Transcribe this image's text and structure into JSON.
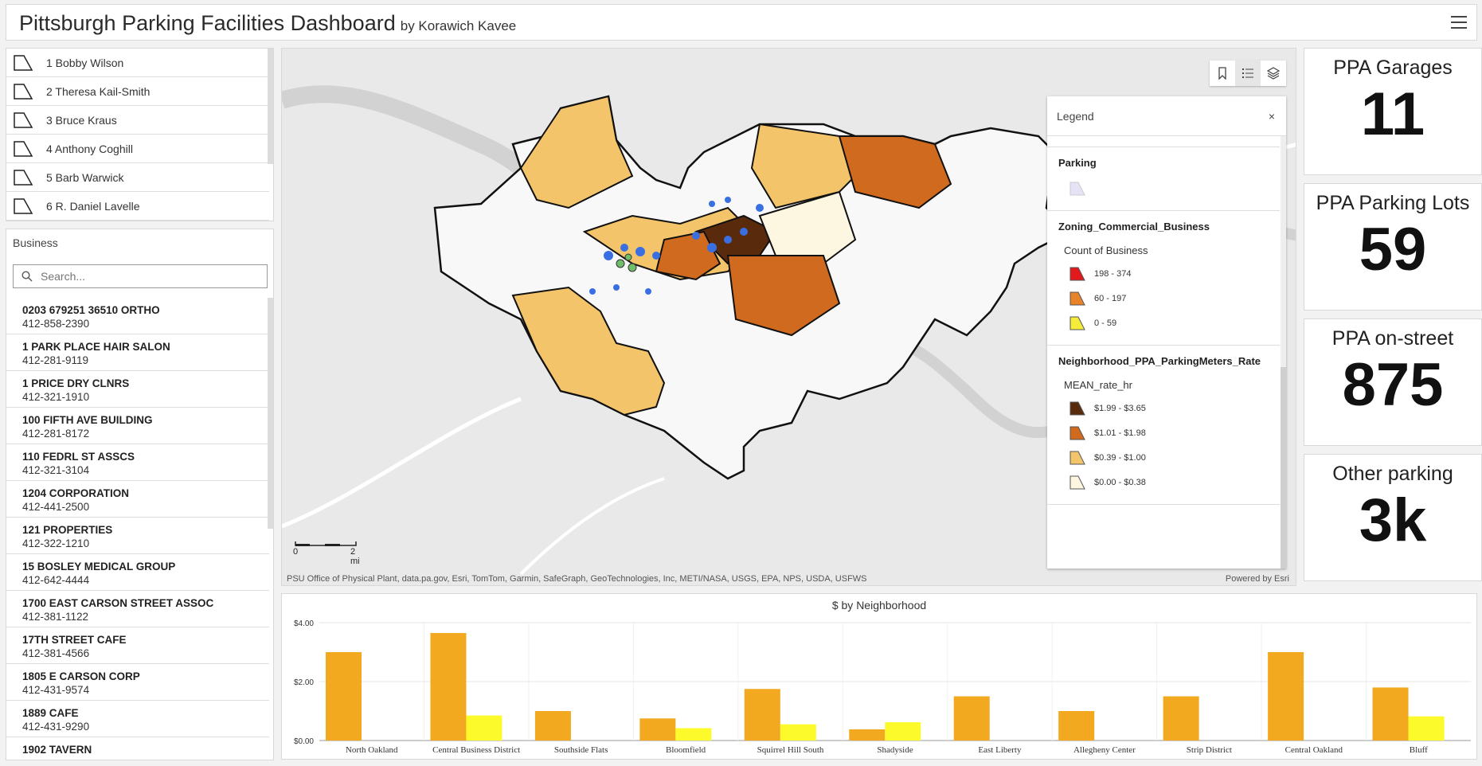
{
  "header": {
    "title": "Pittsburgh Parking Facilities Dashboard",
    "subtitle": "by Korawich Kavee"
  },
  "districts": [
    {
      "label": "1 Bobby Wilson"
    },
    {
      "label": "2 Theresa Kail-Smith"
    },
    {
      "label": "3 Bruce Kraus"
    },
    {
      "label": "4 Anthony Coghill"
    },
    {
      "label": "5 Barb Warwick"
    },
    {
      "label": "6 R. Daniel Lavelle"
    }
  ],
  "business": {
    "title": "Business",
    "search_placeholder": "Search...",
    "items": [
      {
        "name": "0203 679251 36510 ORTHO",
        "phone": "412-858-2390"
      },
      {
        "name": "1 PARK PLACE HAIR SALON",
        "phone": "412-281-9119"
      },
      {
        "name": "1 PRICE DRY CLNRS",
        "phone": "412-321-1910"
      },
      {
        "name": "100 FIFTH AVE BUILDING",
        "phone": "412-281-8172"
      },
      {
        "name": "110 FEDRL ST ASSCS",
        "phone": "412-321-3104"
      },
      {
        "name": "1204 CORPORATION",
        "phone": "412-441-2500"
      },
      {
        "name": "121 PROPERTIES",
        "phone": "412-322-1210"
      },
      {
        "name": "15 BOSLEY MEDICAL GROUP",
        "phone": "412-642-4444"
      },
      {
        "name": "1700 EAST CARSON STREET ASSOC",
        "phone": "412-381-1122"
      },
      {
        "name": "17TH STREET CAFE",
        "phone": "412-381-4566"
      },
      {
        "name": "1805 E CARSON CORP",
        "phone": "412-431-9574"
      },
      {
        "name": "1889 CAFE",
        "phone": "412-431-9290"
      },
      {
        "name": "1902 TAVERN",
        "phone": ""
      }
    ]
  },
  "map": {
    "attribution": "PSU Office of Physical Plant, data.pa.gov, Esri, TomTom, Garmin, SafeGraph, GeoTechnologies, Inc, METI/NASA, USGS, EPA, NPS, USDA, USFWS",
    "powered_by": "Powered by Esri",
    "scale_start": "0",
    "scale_end": "2 mi",
    "tools": [
      "bookmark-icon",
      "legend-list-icon",
      "layers-icon"
    ],
    "legend": {
      "title": "Legend",
      "close": "×",
      "sections": [
        {
          "title": "Parking",
          "items": [
            {
              "color": "#e6e3f7"
            }
          ]
        },
        {
          "title": "Zoning_Commercial_Business",
          "subtitle": "Count of Business",
          "items": [
            {
              "label": "198 - 374",
              "color": "#e31a1c"
            },
            {
              "label": "60 - 197",
              "color": "#e8832a"
            },
            {
              "label": "0 - 59",
              "color": "#f5ec3a"
            }
          ]
        },
        {
          "title": "Neighborhood_PPA_ParkingMeters_Rate",
          "subtitle": "MEAN_rate_hr",
          "items": [
            {
              "label": "$1.99 - $3.65",
              "color": "#5a2a0c"
            },
            {
              "label": "$1.01 - $1.98",
              "color": "#cf6a1e"
            },
            {
              "label": "$0.39 - $1.00",
              "color": "#f4c46a"
            },
            {
              "label": "$0.00 - $0.38",
              "color": "#fdf7e2"
            }
          ]
        }
      ]
    }
  },
  "indicators": [
    {
      "title": "PPA Garages",
      "value": "11"
    },
    {
      "title": "PPA Parking Lots",
      "value": "59"
    },
    {
      "title": "PPA on-street",
      "value": "875"
    },
    {
      "title": "Other parking",
      "value": "3k"
    }
  ],
  "chart_data": {
    "type": "bar",
    "title": "$ by Neighborhood",
    "categories": [
      "North Oakland",
      "Central Business District",
      "Southside Flats",
      "Bloomfield",
      "Squirrel Hill South",
      "Shadyside",
      "East Liberty",
      "Allegheny Center",
      "Strip District",
      "Central Oakland",
      "Bluff"
    ],
    "series": [
      {
        "values": [
          3.0,
          3.65,
          1.0,
          0.75,
          1.75,
          0.38,
          1.5,
          1.0,
          1.5,
          3.0,
          1.8
        ],
        "color": "#f2a81f"
      },
      {
        "values": [
          0,
          0.85,
          0,
          0.42,
          0.55,
          0.62,
          0,
          0,
          0,
          0,
          0.82
        ],
        "color": "#fdfa2c"
      }
    ],
    "yticks": [
      "$0.00",
      "$2.00",
      "$4.00"
    ],
    "ylim": [
      0,
      4
    ]
  }
}
